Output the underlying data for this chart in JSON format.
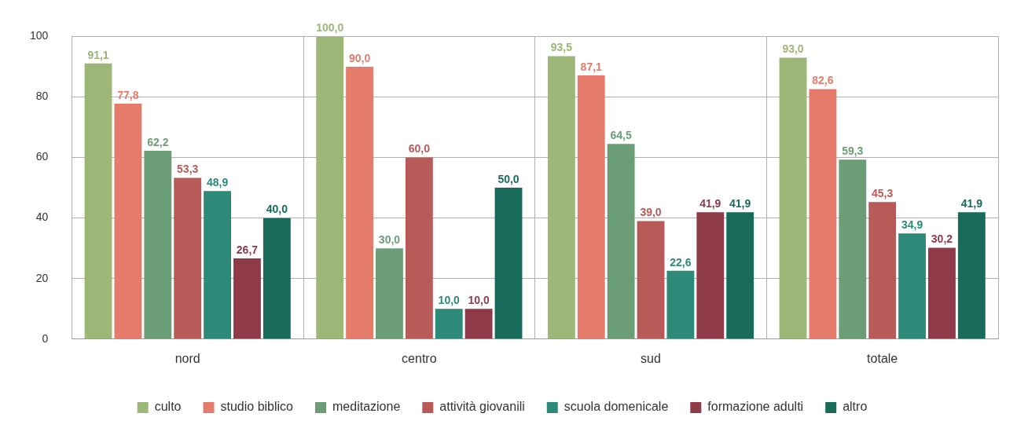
{
  "chart_data": {
    "type": "bar",
    "categories": [
      "nord",
      "centro",
      "sud",
      "totale"
    ],
    "series": [
      {
        "name": "culto",
        "color": "#9cb777",
        "values": [
          91.1,
          100.0,
          93.5,
          93.0
        ],
        "value_labels": [
          "91,1",
          "100,0",
          "93,5",
          "93,0"
        ]
      },
      {
        "name": "studio biblico",
        "color": "#e57b6a",
        "values": [
          77.8,
          90.0,
          87.1,
          82.6
        ],
        "value_labels": [
          "77,8",
          "90,0",
          "87,1",
          "82,6"
        ]
      },
      {
        "name": "meditazione",
        "color": "#6b9e77",
        "values": [
          62.2,
          30.0,
          64.5,
          59.3
        ],
        "value_labels": [
          "62,2",
          "30,0",
          "64,5",
          "59,3"
        ]
      },
      {
        "name": "attività giovanili",
        "color": "#b85a58",
        "values": [
          53.3,
          60.0,
          39.0,
          45.3
        ],
        "value_labels": [
          "53,3",
          "60,0",
          "39,0",
          "45,3"
        ]
      },
      {
        "name": "scuola domenicale",
        "color": "#2e8a78",
        "values": [
          48.9,
          10.0,
          22.6,
          34.9
        ],
        "value_labels": [
          "48,9",
          "10,0",
          "22,6",
          "34,9"
        ]
      },
      {
        "name": "formazione adulti",
        "color": "#8f3a48",
        "values": [
          26.7,
          10.0,
          41.9,
          30.2
        ],
        "value_labels": [
          "26,7",
          "10,0",
          "41,9",
          "30,2"
        ]
      },
      {
        "name": "altro",
        "color": "#186b5a",
        "values": [
          40.0,
          50.0,
          41.9,
          41.9
        ],
        "value_labels": [
          "40,0",
          "50,0",
          "41,9",
          "41,9"
        ]
      }
    ],
    "ylim": [
      0,
      100
    ],
    "yticks": [
      0,
      20,
      40,
      60,
      80,
      100
    ],
    "grid": true,
    "legend": "bottom"
  }
}
